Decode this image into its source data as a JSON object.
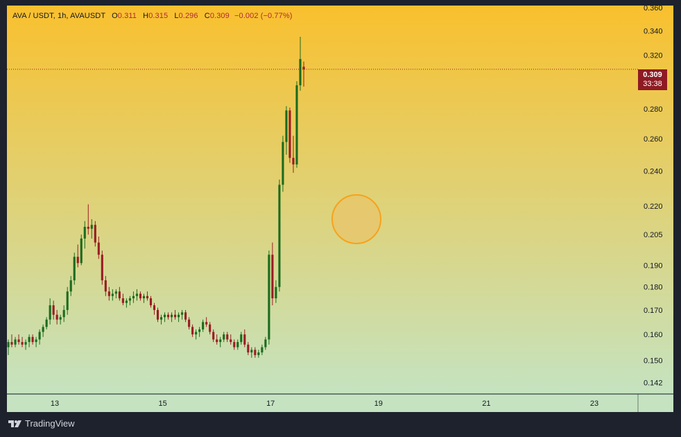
{
  "header": {
    "symbol": "AVA / USDT, 1h, AVAUSDT",
    "open_label": "O",
    "open": "0.311",
    "high_label": "H",
    "high": "0.315",
    "low_label": "L",
    "low": "0.296",
    "close_label": "C",
    "close": "0.309",
    "change": "−0.002 (−0.77%)"
  },
  "price_tag": {
    "price": "0.309",
    "countdown": "33:38"
  },
  "branding": {
    "logo_text": "TradingView"
  },
  "colors": {
    "up": "#1b6b1f",
    "down": "#9a1c24",
    "bg_top": "#f9c02e",
    "bg_bottom": "#c5e3c0",
    "marker_fill": "#e8c46a",
    "marker_stroke": "#f7a21b",
    "price_line": "#9a1c24",
    "axis_panel": "#1e222d"
  },
  "chart_data": {
    "type": "candlestick",
    "symbol": "AVA / USDT",
    "interval": "1h",
    "y_scale": "log",
    "ylim": [
      0.138,
      0.362
    ],
    "y_ticks": [
      "0.142",
      "0.150",
      "0.160",
      "0.170",
      "0.180",
      "0.190",
      "0.205",
      "0.220",
      "0.240",
      "0.260",
      "0.280",
      "0.320",
      "0.340",
      "0.360"
    ],
    "x_ticks": [
      "13",
      "15",
      "17",
      "19",
      "21",
      "23"
    ],
    "last_price": 0.309,
    "candles": [
      [
        0.155,
        0.158,
        0.152,
        0.157
      ],
      [
        0.157,
        0.16,
        0.155,
        0.156
      ],
      [
        0.156,
        0.159,
        0.155,
        0.158
      ],
      [
        0.158,
        0.16,
        0.156,
        0.157
      ],
      [
        0.157,
        0.159,
        0.155,
        0.156
      ],
      [
        0.156,
        0.158,
        0.154,
        0.157
      ],
      [
        0.157,
        0.16,
        0.155,
        0.159
      ],
      [
        0.159,
        0.16,
        0.156,
        0.157
      ],
      [
        0.157,
        0.159,
        0.155,
        0.158
      ],
      [
        0.158,
        0.162,
        0.156,
        0.161
      ],
      [
        0.161,
        0.164,
        0.159,
        0.163
      ],
      [
        0.163,
        0.167,
        0.162,
        0.166
      ],
      [
        0.166,
        0.175,
        0.164,
        0.172
      ],
      [
        0.172,
        0.174,
        0.166,
        0.168
      ],
      [
        0.168,
        0.17,
        0.164,
        0.166
      ],
      [
        0.166,
        0.168,
        0.164,
        0.167
      ],
      [
        0.167,
        0.172,
        0.165,
        0.17
      ],
      [
        0.17,
        0.18,
        0.168,
        0.178
      ],
      [
        0.178,
        0.185,
        0.176,
        0.183
      ],
      [
        0.183,
        0.196,
        0.181,
        0.194
      ],
      [
        0.194,
        0.2,
        0.189,
        0.191
      ],
      [
        0.191,
        0.205,
        0.19,
        0.203
      ],
      [
        0.203,
        0.212,
        0.198,
        0.209
      ],
      [
        0.209,
        0.221,
        0.205,
        0.208
      ],
      [
        0.208,
        0.213,
        0.203,
        0.21
      ],
      [
        0.21,
        0.212,
        0.199,
        0.201
      ],
      [
        0.201,
        0.204,
        0.193,
        0.195
      ],
      [
        0.195,
        0.197,
        0.181,
        0.183
      ],
      [
        0.183,
        0.185,
        0.176,
        0.178
      ],
      [
        0.178,
        0.18,
        0.174,
        0.176
      ],
      [
        0.176,
        0.179,
        0.174,
        0.177
      ],
      [
        0.177,
        0.179,
        0.175,
        0.178
      ],
      [
        0.178,
        0.18,
        0.174,
        0.175
      ],
      [
        0.175,
        0.177,
        0.172,
        0.173
      ],
      [
        0.173,
        0.175,
        0.171,
        0.174
      ],
      [
        0.174,
        0.176,
        0.172,
        0.175
      ],
      [
        0.175,
        0.178,
        0.173,
        0.176
      ],
      [
        0.176,
        0.179,
        0.174,
        0.177
      ],
      [
        0.177,
        0.178,
        0.174,
        0.175
      ],
      [
        0.175,
        0.177,
        0.173,
        0.176
      ],
      [
        0.176,
        0.178,
        0.174,
        0.175
      ],
      [
        0.175,
        0.176,
        0.171,
        0.172
      ],
      [
        0.172,
        0.173,
        0.168,
        0.17
      ],
      [
        0.17,
        0.171,
        0.165,
        0.166
      ],
      [
        0.166,
        0.168,
        0.164,
        0.167
      ],
      [
        0.167,
        0.169,
        0.165,
        0.168
      ],
      [
        0.168,
        0.169,
        0.166,
        0.167
      ],
      [
        0.167,
        0.169,
        0.165,
        0.168
      ],
      [
        0.168,
        0.17,
        0.166,
        0.167
      ],
      [
        0.167,
        0.169,
        0.165,
        0.168
      ],
      [
        0.168,
        0.17,
        0.166,
        0.169
      ],
      [
        0.169,
        0.17,
        0.165,
        0.166
      ],
      [
        0.166,
        0.167,
        0.162,
        0.163
      ],
      [
        0.163,
        0.164,
        0.159,
        0.16
      ],
      [
        0.16,
        0.162,
        0.158,
        0.161
      ],
      [
        0.161,
        0.163,
        0.159,
        0.162
      ],
      [
        0.162,
        0.166,
        0.161,
        0.165
      ],
      [
        0.165,
        0.167,
        0.163,
        0.164
      ],
      [
        0.164,
        0.165,
        0.16,
        0.161
      ],
      [
        0.161,
        0.162,
        0.157,
        0.158
      ],
      [
        0.158,
        0.16,
        0.156,
        0.157
      ],
      [
        0.157,
        0.159,
        0.155,
        0.158
      ],
      [
        0.158,
        0.161,
        0.157,
        0.16
      ],
      [
        0.16,
        0.161,
        0.157,
        0.158
      ],
      [
        0.158,
        0.16,
        0.156,
        0.157
      ],
      [
        0.157,
        0.158,
        0.154,
        0.155
      ],
      [
        0.155,
        0.158,
        0.154,
        0.157
      ],
      [
        0.157,
        0.161,
        0.156,
        0.16
      ],
      [
        0.16,
        0.162,
        0.155,
        0.156
      ],
      [
        0.156,
        0.157,
        0.152,
        0.153
      ],
      [
        0.153,
        0.155,
        0.151,
        0.154
      ],
      [
        0.154,
        0.155,
        0.151,
        0.152
      ],
      [
        0.152,
        0.154,
        0.151,
        0.153
      ],
      [
        0.153,
        0.156,
        0.152,
        0.155
      ],
      [
        0.155,
        0.159,
        0.154,
        0.158
      ],
      [
        0.158,
        0.197,
        0.156,
        0.195
      ],
      [
        0.195,
        0.201,
        0.172,
        0.175
      ],
      [
        0.175,
        0.183,
        0.173,
        0.18
      ],
      [
        0.18,
        0.235,
        0.178,
        0.232
      ],
      [
        0.232,
        0.262,
        0.228,
        0.258
      ],
      [
        0.258,
        0.282,
        0.25,
        0.279
      ],
      [
        0.279,
        0.281,
        0.245,
        0.248
      ],
      [
        0.248,
        0.262,
        0.239,
        0.244
      ],
      [
        0.244,
        0.3,
        0.242,
        0.297
      ],
      [
        0.297,
        0.335,
        0.293,
        0.317
      ],
      [
        0.311,
        0.315,
        0.296,
        0.309
      ]
    ]
  }
}
